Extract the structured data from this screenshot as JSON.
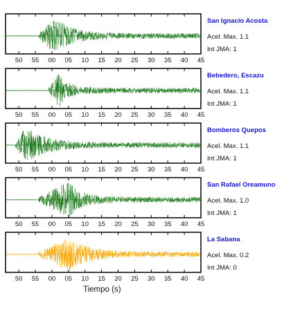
{
  "chart_data": {
    "type": "line",
    "xlabel": "Tiempo (s)",
    "x_ticks": [
      "50",
      "55",
      "00",
      "05",
      "10",
      "15",
      "20",
      "25",
      "30",
      "35",
      "40",
      "45"
    ],
    "panels": [
      {
        "name": "San Ignacio Acosta",
        "acel": "Acel. Max. 1.1",
        "int": "Int JMA: 1",
        "color": "#1a7a1a",
        "onset": 56,
        "peak": 61,
        "amp": 0.95,
        "decay": 5
      },
      {
        "name": "Bebedero, Escazu",
        "acel": "Acel. Max. 1.1",
        "int": "Int JMA: 1",
        "color": "#1a7a1a",
        "onset": 59,
        "peak": 62,
        "amp": 0.95,
        "decay": 3
      },
      {
        "name": "Bomberos Quepos",
        "acel": "Acel. Max. 1.1",
        "int": "Int JMA: 1",
        "color": "#1a7a1a",
        "onset": 49,
        "peak": 52,
        "amp": 0.95,
        "decay": 6
      },
      {
        "name": "San Rafael Oreamuno",
        "acel": "Acel. Max. 1.0",
        "int": "Int JMA: 1",
        "color": "#1a7a1a",
        "onset": 56,
        "peak": 65,
        "amp": 0.95,
        "decay": 4
      },
      {
        "name": "La Sabana",
        "acel": "Acel. Max. 0.2",
        "int": "Int JMA: 0",
        "color": "#f5a800",
        "onset": 56,
        "peak": 65,
        "amp": 0.9,
        "decay": 6
      }
    ]
  }
}
